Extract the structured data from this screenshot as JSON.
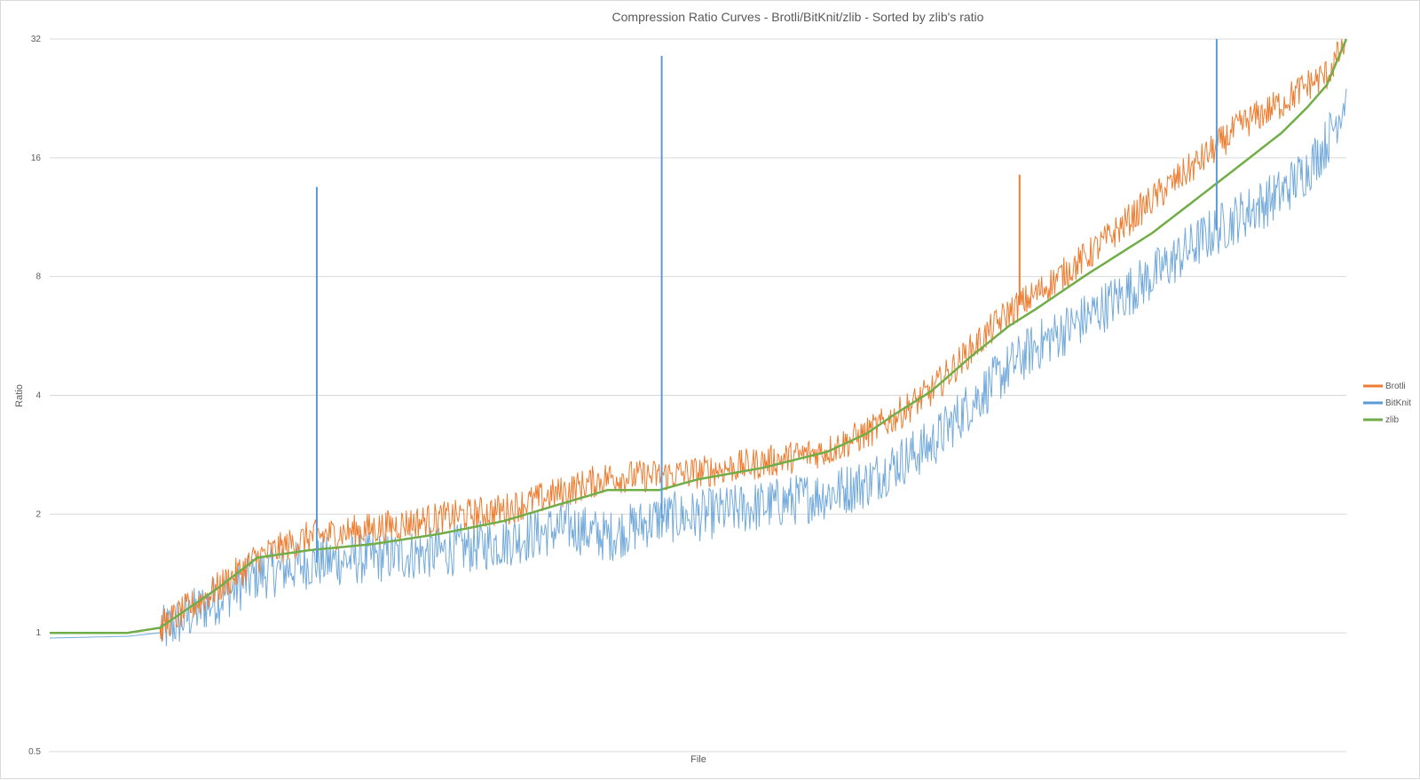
{
  "chart_data": {
    "type": "line",
    "title": "Compression Ratio Curves - Brotli/BitKnit/zlib  - Sorted by zlib's ratio",
    "xlabel": "File",
    "ylabel": "Ratio",
    "y_scale": "log2",
    "ylim": [
      0.5,
      32
    ],
    "yticks": [
      "0.5",
      "1",
      "2",
      "4",
      "8",
      "16",
      "32"
    ],
    "x_ticks_shown": false,
    "grid": true,
    "legend_position": "right",
    "colors": {
      "Brotli": "#ed7d31",
      "BitKnit": "#5b9bd5",
      "zlib": "#70ad47"
    },
    "x": [
      0,
      0.06,
      0.085,
      0.13,
      0.16,
      0.2,
      0.25,
      0.3,
      0.35,
      0.4,
      0.43,
      0.47,
      0.5,
      0.55,
      0.6,
      0.63,
      0.65,
      0.68,
      0.71,
      0.74,
      0.76,
      0.8,
      0.85,
      0.89,
      0.92,
      0.95,
      0.97,
      0.985,
      1.0
    ],
    "series": [
      {
        "name": "Brotli",
        "values": [
          1.0,
          1.0,
          1.03,
          1.3,
          1.55,
          1.75,
          1.84,
          1.95,
          2.05,
          2.3,
          2.48,
          2.5,
          2.55,
          2.7,
          2.9,
          3.2,
          3.5,
          4.1,
          5.2,
          6.5,
          7.2,
          9.0,
          12.5,
          16.0,
          19.5,
          22.0,
          24.5,
          26.0,
          31.5
        ]
      },
      {
        "name": "BitKnit",
        "values": [
          0.97,
          0.98,
          1.0,
          1.22,
          1.4,
          1.5,
          1.55,
          1.6,
          1.7,
          1.86,
          1.75,
          1.95,
          1.98,
          2.1,
          2.25,
          2.4,
          2.65,
          3.0,
          3.8,
          4.7,
          5.3,
          6.3,
          8.0,
          10.0,
          11.5,
          13.0,
          15.0,
          17.5,
          23.0
        ]
      },
      {
        "name": "zlib",
        "values": [
          1.0,
          1.0,
          1.03,
          1.3,
          1.55,
          1.62,
          1.68,
          1.78,
          1.92,
          2.15,
          2.3,
          2.3,
          2.45,
          2.62,
          2.88,
          3.2,
          3.55,
          4.1,
          5.0,
          6.0,
          6.6,
          8.1,
          10.3,
          13.0,
          15.5,
          18.5,
          21.5,
          24.5,
          32.0
        ]
      }
    ],
    "annotations": [
      {
        "series": "BitKnit",
        "x": 0.206,
        "y": 13.5
      },
      {
        "series": "BitKnit",
        "x": 0.472,
        "y": 29.0
      },
      {
        "series": "BitKnit",
        "x": 0.9,
        "y": 32.0
      },
      {
        "series": "Brotli",
        "x": 0.748,
        "y": 14.5
      }
    ]
  }
}
